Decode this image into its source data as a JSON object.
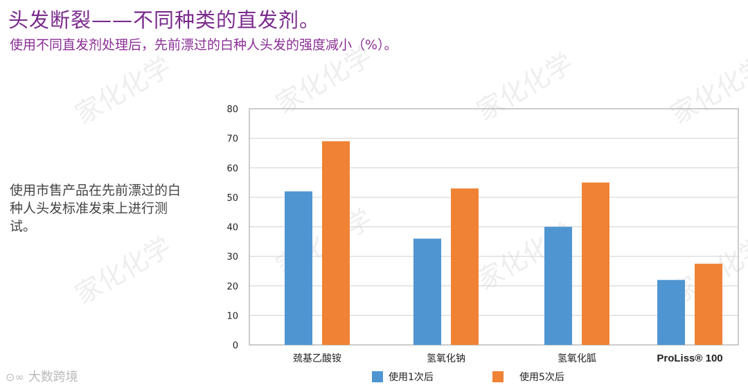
{
  "header": {
    "title": "头发断裂——不同种类的直发剂。",
    "subtitle": "使用不同直发剂处理后，先前漂过的白种人头发的强度减小（%）。"
  },
  "note": "使用市售产品在先前漂过的白种人头发标准发束上进行测试。",
  "watermark": "家化化学",
  "footer_logo": "大数跨境",
  "colors": {
    "title": "#7a2a8c",
    "series1": "#4f95d1",
    "series2": "#f08235",
    "grid": "#d0d0d0"
  },
  "chart_data": {
    "type": "bar",
    "categories": [
      "巯基乙酸铵",
      "氢氧化钠",
      "氢氧化胍",
      "ProLiss® 100"
    ],
    "series": [
      {
        "name": "使用1次后",
        "values": [
          52,
          36,
          40,
          22
        ]
      },
      {
        "name": "使用5次后",
        "values": [
          69,
          53,
          55,
          27.5
        ]
      }
    ],
    "ylim": [
      0,
      80
    ],
    "yticks": [
      "0",
      "10",
      "20",
      "30",
      "40",
      "50",
      "60",
      "70",
      "80"
    ],
    "grid": true,
    "legend_position": "bottom"
  }
}
